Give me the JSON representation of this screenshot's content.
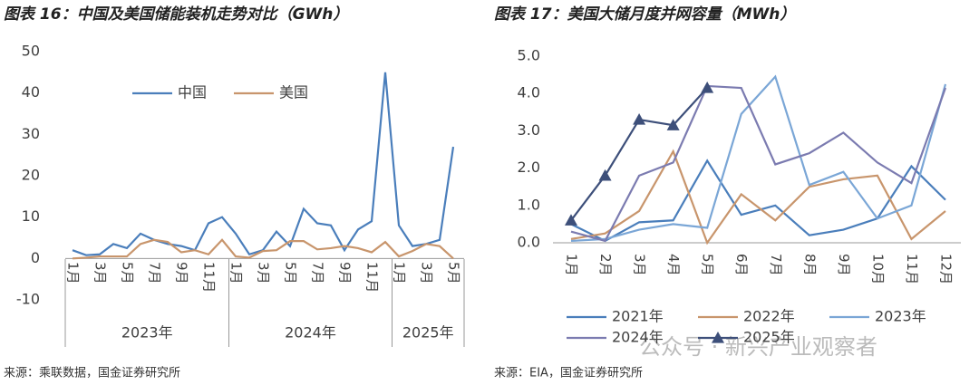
{
  "chart_data": [
    {
      "type": "line",
      "title": "图表 16：中国及美国储能装机走势对比（GWh）",
      "categories": [
        "1月",
        null,
        "3月",
        null,
        "5月",
        null,
        "7月",
        null,
        "9月",
        null,
        "11月",
        null,
        "1月",
        null,
        "3月",
        null,
        "5月",
        null,
        "7月",
        null,
        "9月",
        null,
        "11月",
        null,
        "1月",
        null,
        "3月",
        null,
        "5月"
      ],
      "groups": [
        "2023年",
        "2024年",
        "2025年"
      ],
      "series": [
        {
          "name": "中国",
          "color": "#4a7ebb",
          "values": [
            2,
            0.8,
            1,
            3.5,
            2.5,
            6,
            4.5,
            3.5,
            3,
            2,
            8.5,
            10,
            6,
            1,
            2,
            6.5,
            3,
            12,
            8.5,
            8,
            2,
            7,
            9,
            45,
            8,
            3,
            3.5,
            4.5,
            27
          ]
        },
        {
          "name": "美国",
          "color": "#c8956c",
          "values": [
            0,
            0.2,
            0.5,
            0.5,
            0.5,
            3.5,
            4.5,
            4,
            1.5,
            2,
            1,
            4.5,
            0.5,
            0.2,
            1.8,
            2,
            4.2,
            4.2,
            2.2,
            2.5,
            3,
            2.5,
            1.5,
            4,
            0.5,
            1.8,
            3.5,
            3,
            0
          ]
        }
      ],
      "ylim": [
        -10,
        50
      ],
      "yticks": [
        -10,
        0,
        10,
        20,
        30,
        40,
        50
      ],
      "grid": false,
      "legend": "top",
      "source": "来源：乘联数据，国金证券研究所"
    },
    {
      "type": "line",
      "title": "图表 17：美国大储月度并网容量（MWh）",
      "categories": [
        "1月",
        "2月",
        "3月",
        "4月",
        "5月",
        "6月",
        "7月",
        "8月",
        "9月",
        "10月",
        "11月",
        "12月"
      ],
      "series": [
        {
          "name": "2021年",
          "color": "#4a7ebb",
          "values": [
            0.5,
            0.05,
            0.55,
            0.6,
            2.2,
            0.75,
            1.0,
            0.2,
            0.35,
            0.65,
            2.05,
            1.15
          ]
        },
        {
          "name": "2022年",
          "color": "#c8956c",
          "values": [
            0.1,
            0.25,
            0.85,
            2.45,
            0.0,
            1.3,
            0.6,
            1.5,
            1.7,
            1.8,
            0.1,
            0.85
          ]
        },
        {
          "name": "2023年",
          "color": "#7aa6d6",
          "values": [
            0.05,
            0.1,
            0.35,
            0.5,
            0.4,
            3.45,
            4.45,
            1.55,
            1.9,
            0.65,
            1.0,
            4.25
          ]
        },
        {
          "name": "2024年",
          "color": "#7b7bb0",
          "values": [
            0.3,
            0.05,
            1.8,
            2.15,
            4.2,
            4.15,
            2.1,
            2.4,
            2.95,
            2.15,
            1.6,
            4.15
          ]
        },
        {
          "name": "2025年",
          "color": "#3d4f7a",
          "marker": "triangle",
          "values": [
            0.6,
            1.8,
            3.3,
            3.15,
            4.15,
            null,
            null,
            null,
            null,
            null,
            null,
            null
          ]
        }
      ],
      "ylim": [
        0,
        5
      ],
      "yticks": [
        {
          "value": 0,
          "label": "0.0"
        },
        {
          "value": 1,
          "label": "1.0"
        },
        {
          "value": 2,
          "label": "2.0"
        },
        {
          "value": 3,
          "label": "3.0"
        },
        {
          "value": 4,
          "label": "4.0"
        },
        {
          "value": 5,
          "label": "5.0"
        }
      ],
      "grid": false,
      "legend": "bottom",
      "source": "来源：EIA，国金证券研究所"
    }
  ],
  "watermark": "公众号 · 新兴产业观察者"
}
